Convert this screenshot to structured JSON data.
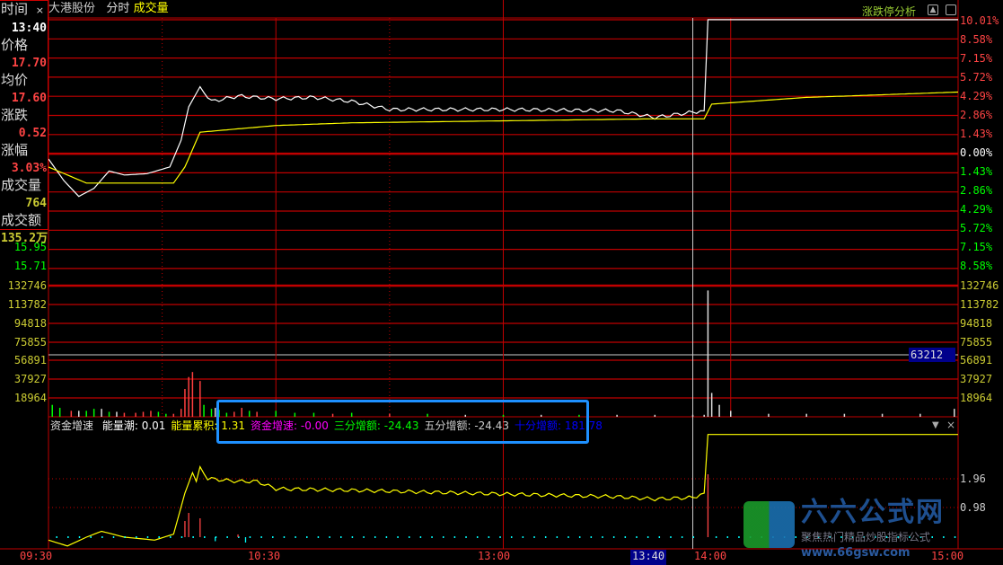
{
  "header": {
    "stock_name": "大港股份",
    "mode": "分时",
    "indicator": "成交量",
    "analysis_label": "涨跌停分析"
  },
  "info_panel": {
    "time_label": "时间",
    "time": "13:40",
    "close_icon": "×",
    "price_label": "价格",
    "price": "17.70",
    "avg_label": "均价",
    "avg": "17.60",
    "change_label": "涨跌",
    "change": "0.52",
    "pct_label": "涨幅",
    "pct": "3.03%",
    "vol_label": "成交量",
    "vol": "764",
    "amount_label": "成交额",
    "amount": "135.2万"
  },
  "left_price_axis": [
    "15.95",
    "15.71"
  ],
  "right_pct_axis": [
    "10.01%",
    "8.58%",
    "7.15%",
    "5.72%",
    "4.29%",
    "2.86%",
    "1.43%",
    "0.00%",
    "1.43%",
    "2.86%",
    "4.29%",
    "5.72%",
    "7.15%",
    "8.58%"
  ],
  "volume_axis": [
    "132746",
    "113782",
    "94818",
    "75855",
    "56891",
    "37927",
    "18964"
  ],
  "cursor_volume": "63212",
  "indicator_bar": {
    "name": "资金增速",
    "items": [
      {
        "label": "能量潮: 0.01",
        "color": "#ffffff"
      },
      {
        "label": "能量累积: 1.31",
        "color": "#ffff00"
      },
      {
        "label": "资金增速: -0.00",
        "color": "#ff00ff"
      },
      {
        "label": "三分增额: -24.43",
        "color": "#00ff00"
      },
      {
        "label": "五分增额: -24.43",
        "color": "#cccccc"
      },
      {
        "label": "十分增额: 181.78",
        "color": "#0000ff"
      }
    ]
  },
  "indicator_axis": [
    "1.96",
    "0.98"
  ],
  "time_axis": [
    "09:30",
    "10:30",
    "13:00",
    "13:40",
    "14:00",
    "15:00"
  ],
  "logo": {
    "name": "六六公式网",
    "slogan": "聚焦热门精品炒股指标公式",
    "site": "www.66gsw.com"
  },
  "colors": {
    "grid": "#c00000",
    "price": "#ffffff",
    "avg": "#ffff00",
    "up": "#ff4040",
    "down": "#00ff00",
    "highlight": "#1e90ff"
  },
  "chart_data": {
    "type": "line",
    "price_pct_points": [
      [
        0,
        -0.4
      ],
      [
        4,
        -2
      ],
      [
        8,
        -3.2
      ],
      [
        12,
        -2.6
      ],
      [
        16,
        -1.3
      ],
      [
        20,
        -1.6
      ],
      [
        26,
        -1.5
      ],
      [
        32,
        -1
      ],
      [
        35,
        1
      ],
      [
        37,
        3.5
      ],
      [
        40,
        5
      ],
      [
        43,
        3.9
      ],
      [
        50,
        4.3
      ],
      [
        60,
        4.1
      ],
      [
        70,
        4.2
      ],
      [
        80,
        3.9
      ],
      [
        90,
        3.3
      ],
      [
        120,
        3.3
      ],
      [
        150,
        3.2
      ],
      [
        160,
        2.7
      ],
      [
        170,
        3.1
      ],
      [
        173,
        3.2
      ],
      [
        174,
        10.01
      ],
      [
        240,
        10.01
      ]
    ],
    "avg_pct_points": [
      [
        0,
        -1
      ],
      [
        10,
        -2.2
      ],
      [
        33,
        -2.2
      ],
      [
        36,
        -1
      ],
      [
        40,
        1.6
      ],
      [
        60,
        2.1
      ],
      [
        80,
        2.3
      ],
      [
        160,
        2.6
      ],
      [
        173,
        2.6
      ],
      [
        175,
        3.7
      ],
      [
        200,
        4.2
      ],
      [
        240,
        4.6
      ]
    ],
    "volume_bars": [
      [
        1,
        12000,
        "g"
      ],
      [
        3,
        9000,
        "g"
      ],
      [
        6,
        6000,
        "r"
      ],
      [
        8,
        6000,
        "w"
      ],
      [
        10,
        6000,
        "g"
      ],
      [
        12,
        8000,
        "g"
      ],
      [
        14,
        8000,
        "w"
      ],
      [
        16,
        5000,
        "g"
      ],
      [
        18,
        5000,
        "w"
      ],
      [
        20,
        4000,
        "r"
      ],
      [
        23,
        4000,
        "r"
      ],
      [
        25,
        5000,
        "r"
      ],
      [
        27,
        6000,
        "r"
      ],
      [
        29,
        5000,
        "g"
      ],
      [
        31,
        3000,
        "g"
      ],
      [
        33,
        3000,
        "r"
      ],
      [
        35,
        8000,
        "r"
      ],
      [
        36,
        28000,
        "r"
      ],
      [
        37,
        40000,
        "r"
      ],
      [
        38,
        45000,
        "r"
      ],
      [
        40,
        36000,
        "r"
      ],
      [
        41,
        12000,
        "g"
      ],
      [
        43,
        8000,
        "g"
      ],
      [
        44,
        9000,
        "w"
      ],
      [
        45,
        7000,
        "g"
      ],
      [
        47,
        4000,
        "g"
      ],
      [
        49,
        5000,
        "r"
      ],
      [
        51,
        9000,
        "r"
      ],
      [
        53,
        6000,
        "g"
      ],
      [
        55,
        5000,
        "r"
      ],
      [
        60,
        6000,
        "g"
      ],
      [
        65,
        4000,
        "g"
      ],
      [
        70,
        4000,
        "g"
      ],
      [
        75,
        3000,
        "r"
      ],
      [
        80,
        4000,
        "g"
      ],
      [
        90,
        3000,
        "r"
      ],
      [
        100,
        3000,
        "g"
      ],
      [
        110,
        2000,
        "w"
      ],
      [
        120,
        2000,
        "g"
      ],
      [
        130,
        2000,
        "w"
      ],
      [
        140,
        2000,
        "g"
      ],
      [
        150,
        2000,
        "w"
      ],
      [
        160,
        2000,
        "w"
      ],
      [
        170,
        2000,
        "w"
      ],
      [
        173,
        2000,
        "w"
      ],
      [
        174,
        127000,
        "w"
      ],
      [
        175,
        24000,
        "w"
      ],
      [
        177,
        12000,
        "w"
      ],
      [
        180,
        6000,
        "w"
      ],
      [
        190,
        3000,
        "w"
      ],
      [
        200,
        3000,
        "w"
      ],
      [
        210,
        3000,
        "w"
      ],
      [
        220,
        3000,
        "w"
      ],
      [
        230,
        3000,
        "w"
      ],
      [
        239,
        8000,
        "w"
      ]
    ],
    "indicator_points": [
      [
        0,
        -0.1
      ],
      [
        5,
        -0.3
      ],
      [
        10,
        0
      ],
      [
        14,
        0.2
      ],
      [
        20,
        0
      ],
      [
        28,
        -0.1
      ],
      [
        33,
        0.1
      ],
      [
        36,
        1.5
      ],
      [
        38,
        2.2
      ],
      [
        39,
        1.9
      ],
      [
        40,
        2.4
      ],
      [
        42,
        2.0
      ],
      [
        50,
        1.9
      ],
      [
        55,
        1.9
      ],
      [
        60,
        1.65
      ],
      [
        80,
        1.6
      ],
      [
        120,
        1.47
      ],
      [
        150,
        1.38
      ],
      [
        160,
        1.3
      ],
      [
        170,
        1.35
      ],
      [
        173,
        1.5
      ],
      [
        174,
        3.5
      ],
      [
        240,
        3.5
      ]
    ]
  }
}
